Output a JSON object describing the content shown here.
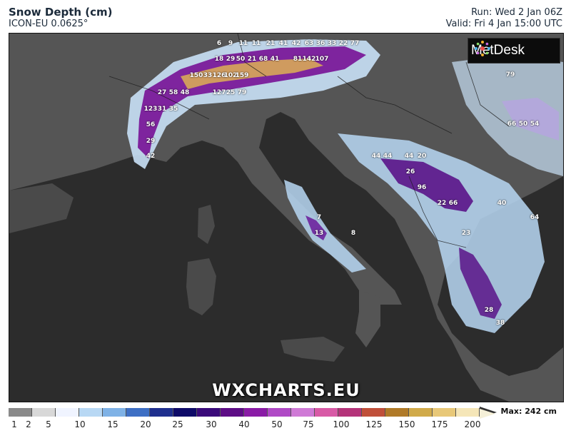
{
  "header": {
    "title": "Snow Depth (cm)",
    "model": "ICON-EU 0.0625°",
    "run": "Run: Wed 2 Jan 06Z",
    "valid": "Valid: Fri 4 Jan 15:00 UTC"
  },
  "logo": {
    "text": "MetDesk"
  },
  "watermark": "WXCHARTS.EU",
  "legend": {
    "colors": [
      "#8a8a8a",
      "#d8d8d8",
      "#f0f4ff",
      "#b8d8f4",
      "#7fb2e6",
      "#3e6fc4",
      "#1f2f8e",
      "#0e0a68",
      "#3a0a7a",
      "#5e0d86",
      "#8a1ba6",
      "#b04ac6",
      "#cf7ad6",
      "#d85aa6",
      "#b5347a",
      "#c0503a",
      "#b07a28",
      "#d0aa4a",
      "#e8c878",
      "#f5e6b8"
    ],
    "labels": [
      "1",
      "2",
      "5",
      "10",
      "15",
      "20",
      "25",
      "30",
      "40",
      "50",
      "75",
      "100",
      "125",
      "150",
      "175",
      "200"
    ],
    "max_label": "Max: 242 cm"
  },
  "map": {
    "values": [
      {
        "text": "6"
      },
      {
        "text": "9"
      },
      {
        "text": "11"
      },
      {
        "text": "11"
      },
      {
        "text": "21"
      },
      {
        "text": "41"
      },
      {
        "text": "42"
      },
      {
        "text": "63"
      },
      {
        "text": "36"
      },
      {
        "text": "33"
      },
      {
        "text": "22"
      },
      {
        "text": "77"
      },
      {
        "text": "18"
      },
      {
        "text": "29"
      },
      {
        "text": "50"
      },
      {
        "text": "21"
      },
      {
        "text": "68"
      },
      {
        "text": "41"
      },
      {
        "text": "81"
      },
      {
        "text": "142"
      },
      {
        "text": "107"
      },
      {
        "text": "150"
      },
      {
        "text": "33"
      },
      {
        "text": "126"
      },
      {
        "text": "102"
      },
      {
        "text": "159"
      },
      {
        "text": "27"
      },
      {
        "text": "58"
      },
      {
        "text": "48"
      },
      {
        "text": "127"
      },
      {
        "text": "25"
      },
      {
        "text": "79"
      },
      {
        "text": "123"
      },
      {
        "text": "31"
      },
      {
        "text": "35"
      },
      {
        "text": "56"
      },
      {
        "text": "29"
      },
      {
        "text": "42"
      },
      {
        "text": "44"
      },
      {
        "text": "44"
      },
      {
        "text": "44"
      },
      {
        "text": "20"
      },
      {
        "text": "26"
      },
      {
        "text": "96"
      },
      {
        "text": "22"
      },
      {
        "text": "66"
      },
      {
        "text": "13"
      },
      {
        "text": "8"
      },
      {
        "text": "7"
      },
      {
        "text": "66"
      },
      {
        "text": "50"
      },
      {
        "text": "54"
      },
      {
        "text": "79"
      },
      {
        "text": "23"
      },
      {
        "text": "28"
      },
      {
        "text": "38"
      },
      {
        "text": "40"
      },
      {
        "text": "64"
      }
    ]
  }
}
